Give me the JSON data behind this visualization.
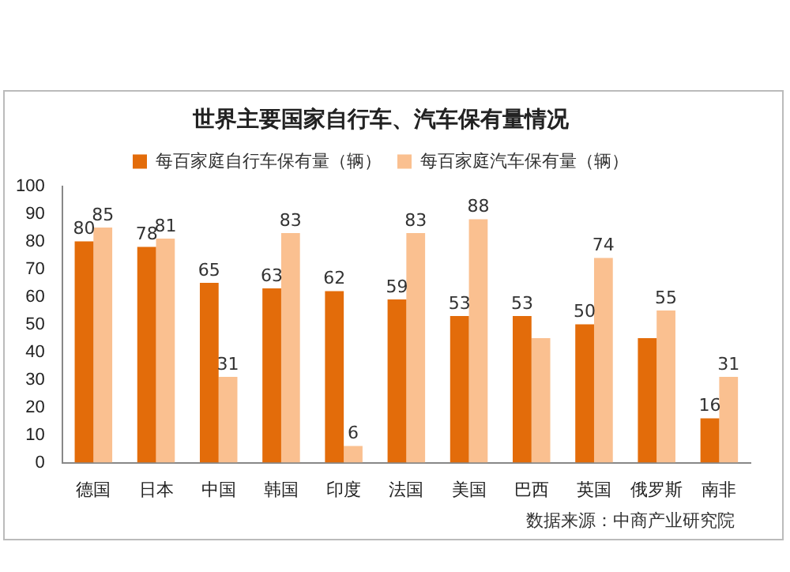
{
  "chart_data": {
    "type": "bar",
    "title": "世界主要国家自行车、汽车保有量情况",
    "categories": [
      "德国",
      "日本",
      "中国",
      "韩国",
      "印度",
      "法国",
      "美国",
      "巴西",
      "英国",
      "俄罗斯",
      "南非"
    ],
    "series": [
      {
        "name": "每百家庭自行车保有量（辆）",
        "color": "#e36c0a",
        "values": [
          80,
          78,
          65,
          63,
          62,
          59,
          53,
          53,
          50,
          45,
          16
        ],
        "value_labels": [
          "80",
          "78",
          "65",
          "63",
          "62",
          "59",
          "53",
          "53",
          "50",
          null,
          "16"
        ]
      },
      {
        "name": "每百家庭汽车保有量（辆）",
        "color": "#fac090",
        "values": [
          85,
          81,
          31,
          83,
          6,
          83,
          88,
          45,
          74,
          55,
          31
        ],
        "value_labels": [
          "85",
          "81",
          "31",
          "83",
          "6",
          "83",
          "88",
          null,
          "74",
          "55",
          "31"
        ]
      }
    ],
    "ylim": [
      0,
      100
    ],
    "yticks": [
      0,
      10,
      20,
      30,
      40,
      50,
      60,
      70,
      80,
      90,
      100
    ],
    "grid": false,
    "legend": "top",
    "annotations": [
      "数据来源：中商产业研究院"
    ]
  }
}
